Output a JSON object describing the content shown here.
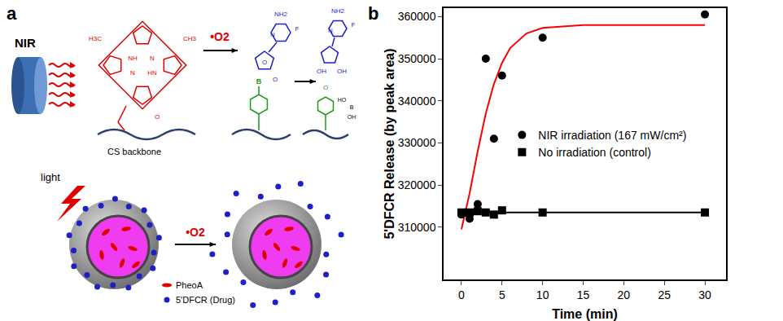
{
  "diagram": {
    "panel_label": "a",
    "source": "NIR",
    "oxidant": "•O2",
    "backbone": "CS backbone",
    "trigger": "light",
    "photosensitizer_atoms": [
      "NH",
      "N",
      "N",
      "HN",
      "H3C",
      "CH3",
      "O"
    ],
    "prodrug_atoms": [
      "NH2",
      "F",
      "N",
      "O",
      "B",
      "O"
    ],
    "product_atoms": [
      "NH2",
      "F",
      "N",
      "OH",
      "OH",
      "O",
      "HO",
      "B",
      "OH"
    ],
    "legend": [
      {
        "label": "PheoA",
        "color": "#e00000"
      },
      {
        "label": "5'DFCR (Drug)",
        "color": "#1f1fc8"
      }
    ]
  },
  "chart_data": {
    "type": "scatter",
    "panel_label": "b",
    "x_label": "Time (min)",
    "y_label": "5'DFCR Release (by peak area)",
    "xlim": [
      -2.2,
      32.6
    ],
    "xticks": [
      0,
      5,
      10,
      15,
      20,
      25,
      30
    ],
    "ylim": [
      297600,
      362000
    ],
    "yticks": [
      310000,
      320000,
      330000,
      340000,
      350000,
      360000
    ],
    "grid": false,
    "legend": "center",
    "series": [
      {
        "name": "NIR irradiation (167 mW/cm²)",
        "type": "scatter",
        "marker": "circle",
        "color": "#000000",
        "x": [
          0,
          0.5,
          1,
          1,
          2,
          3,
          4,
          5,
          10,
          30
        ],
        "values": [
          313000,
          313500,
          312000,
          313000,
          315500,
          350000,
          331000,
          346000,
          355000,
          360500
        ]
      },
      {
        "name": "No irradiation (control)",
        "type": "scatter",
        "marker": "square",
        "color": "#000000",
        "x": [
          0,
          1,
          2,
          3,
          4,
          5,
          10,
          30
        ],
        "values": [
          313500,
          313500,
          313800,
          313500,
          313000,
          314000,
          313500,
          313500
        ]
      },
      {
        "type": "line",
        "color": "#ff0000",
        "line_style": "solid",
        "x": [
          0,
          1,
          2,
          3,
          4,
          5,
          6,
          8,
          10,
          15,
          20,
          30
        ],
        "values": [
          309500,
          318000,
          328000,
          337000,
          344000,
          349000,
          352500,
          356000,
          357300,
          358000,
          358000,
          358000
        ]
      },
      {
        "type": "line",
        "color": "#000000",
        "line_style": "solid",
        "x": [
          0,
          30
        ],
        "values": [
          313500,
          313500
        ]
      }
    ]
  }
}
